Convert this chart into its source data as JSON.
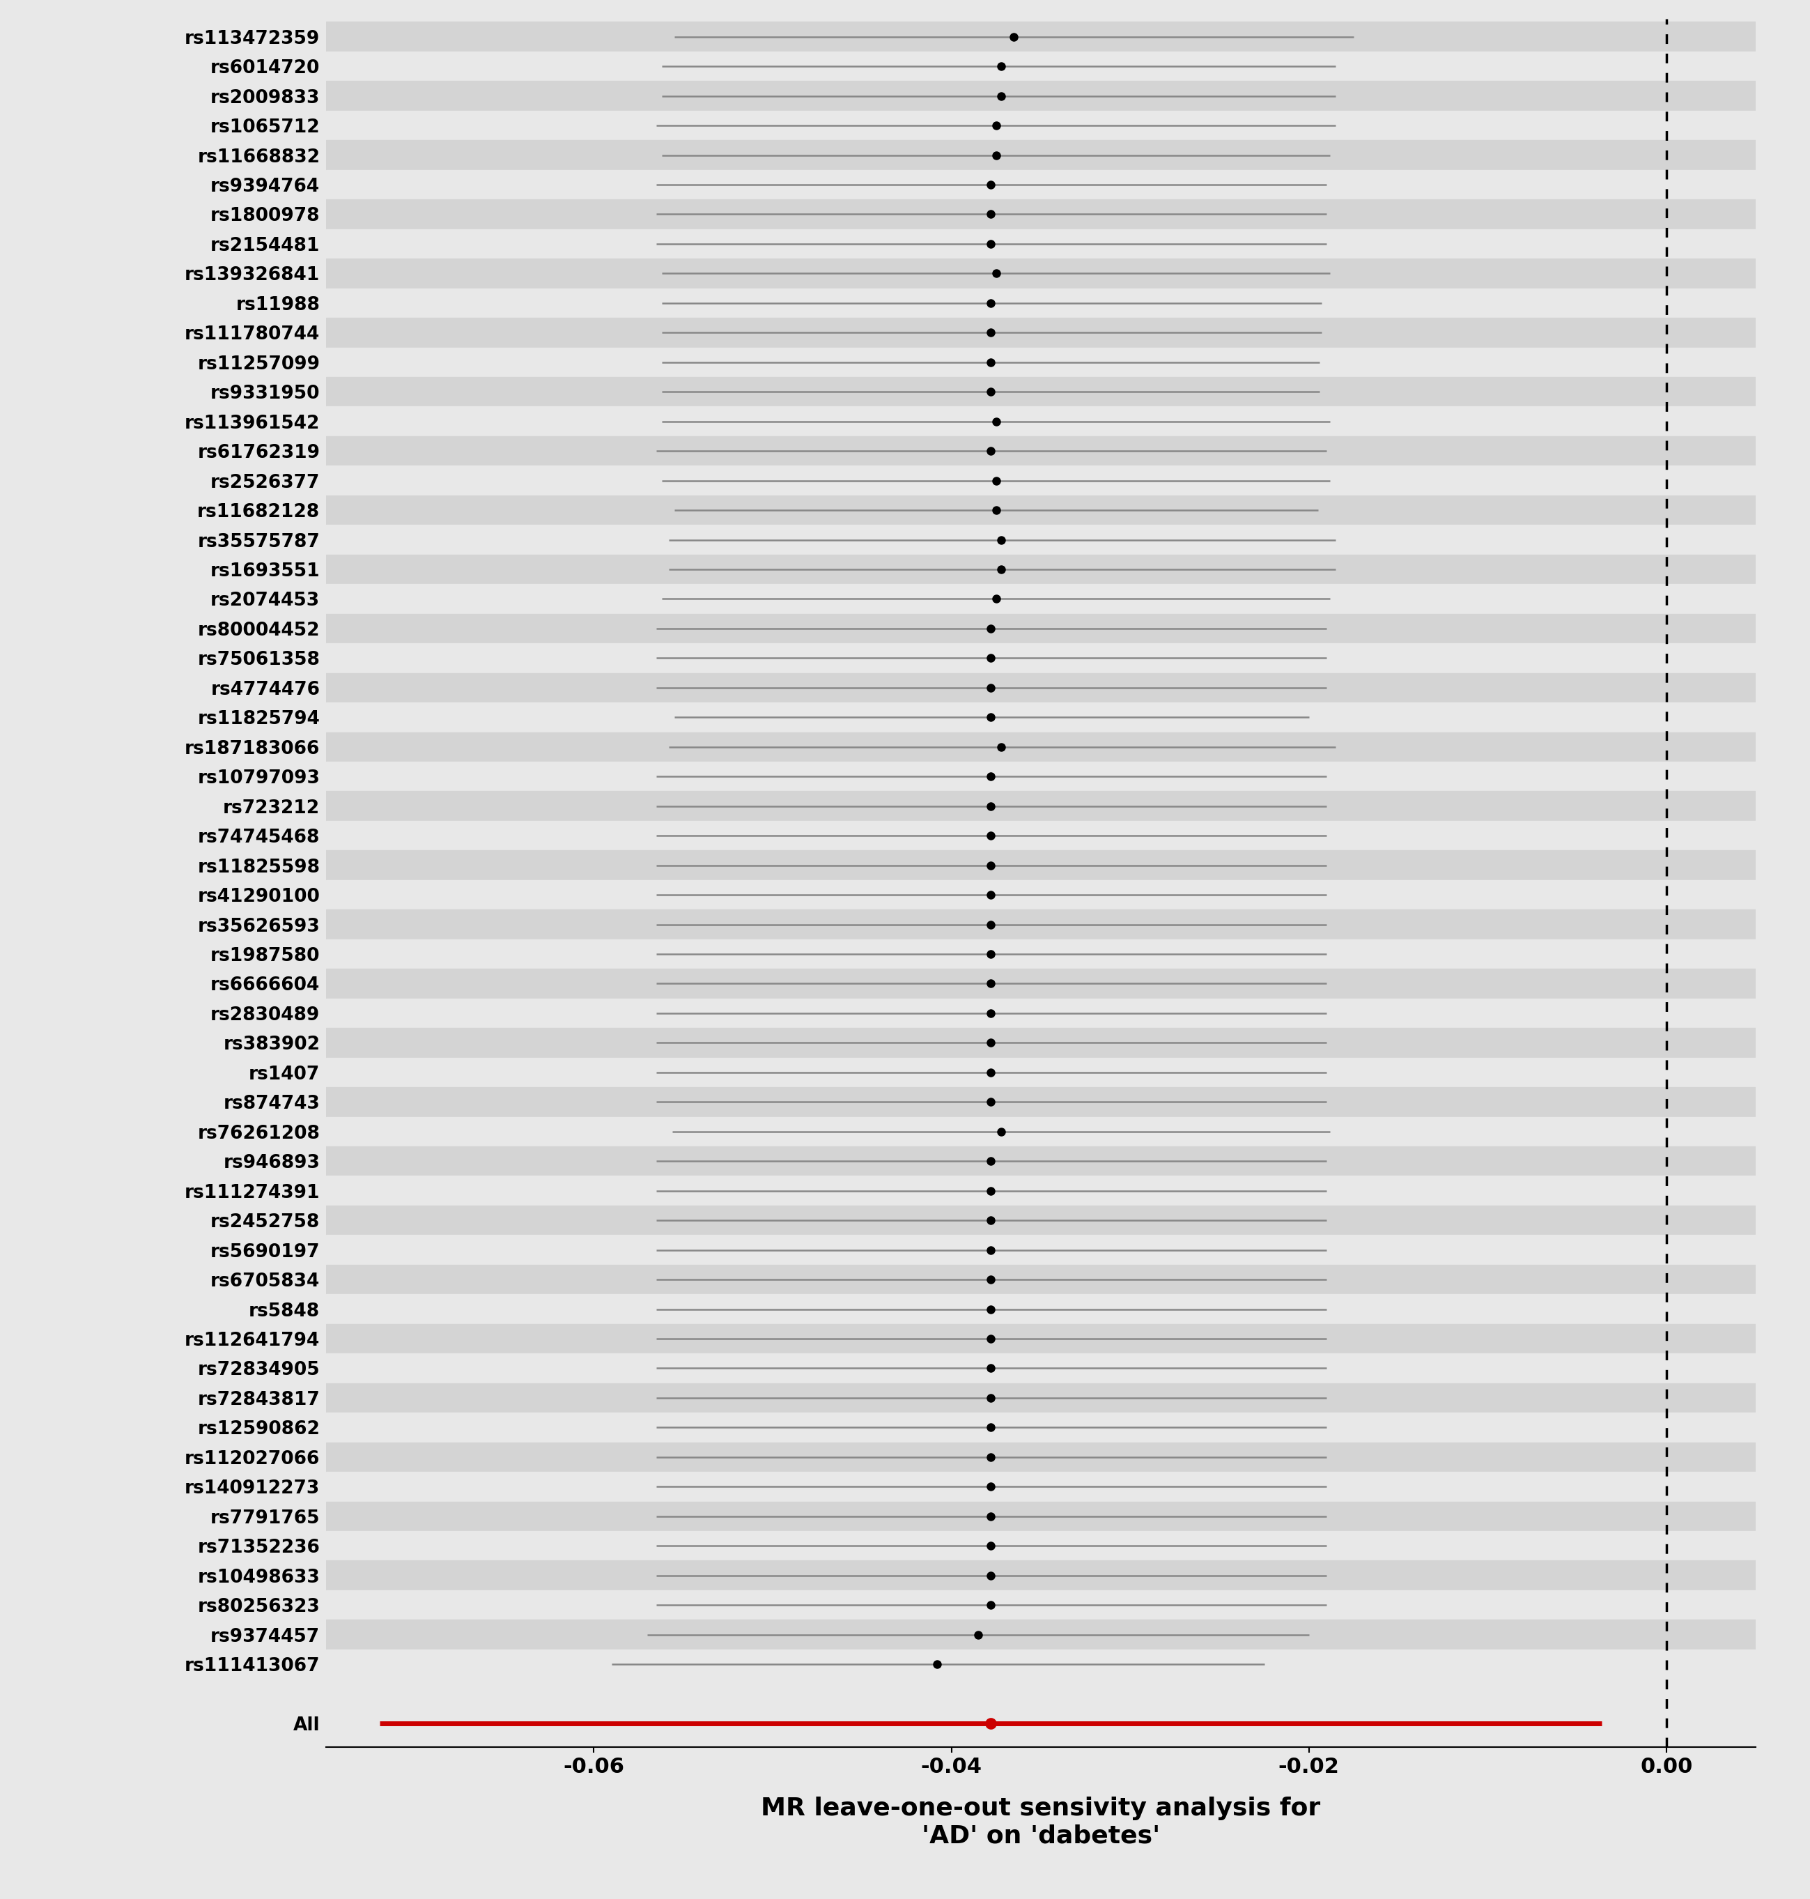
{
  "snps": [
    "rs113472359",
    "rs6014720",
    "rs2009833",
    "rs1065712",
    "rs11668832",
    "rs9394764",
    "rs1800978",
    "rs2154481",
    "rs139326841",
    "rs11988",
    "rs111780744",
    "rs11257099",
    "rs9331950",
    "rs113961542",
    "rs61762319",
    "rs2526377",
    "rs11682128",
    "rs35575787",
    "rs1693551",
    "rs2074453",
    "rs80004452",
    "rs75061358",
    "rs4774476",
    "rs11825794",
    "rs187183066",
    "rs10797093",
    "rs723212",
    "rs74745468",
    "rs11825598",
    "rs41290100",
    "rs35626593",
    "rs1987580",
    "rs6666604",
    "rs2830489",
    "rs383902",
    "rs1407",
    "rs874743",
    "rs76261208",
    "rs946893",
    "rs111274391",
    "rs2452758",
    "rs5690197",
    "rs6705834",
    "rs5848",
    "rs112641794",
    "rs72834905",
    "rs72843817",
    "rs12590862",
    "rs112027066",
    "rs140912273",
    "rs7791765",
    "rs71352236",
    "rs10498633",
    "rs80256323",
    "rs9374457",
    "rs111413067"
  ],
  "estimates": [
    -0.0365,
    -0.0372,
    -0.0372,
    -0.0375,
    -0.0375,
    -0.0378,
    -0.0378,
    -0.0378,
    -0.0375,
    -0.0378,
    -0.0378,
    -0.0378,
    -0.0378,
    -0.0375,
    -0.0378,
    -0.0375,
    -0.0375,
    -0.0372,
    -0.0372,
    -0.0375,
    -0.0378,
    -0.0378,
    -0.0378,
    -0.0378,
    -0.0372,
    -0.0378,
    -0.0378,
    -0.0378,
    -0.0378,
    -0.0378,
    -0.0378,
    -0.0378,
    -0.0378,
    -0.0378,
    -0.0378,
    -0.0378,
    -0.0378,
    -0.0372,
    -0.0378,
    -0.0378,
    -0.0378,
    -0.0378,
    -0.0378,
    -0.0378,
    -0.0378,
    -0.0378,
    -0.0378,
    -0.0378,
    -0.0378,
    -0.0378,
    -0.0378,
    -0.0378,
    -0.0378,
    -0.0378,
    -0.0385,
    -0.0408
  ],
  "ci_lower": [
    -0.0555,
    -0.0562,
    -0.0562,
    -0.0565,
    -0.0562,
    -0.0565,
    -0.0565,
    -0.0565,
    -0.0562,
    -0.0562,
    -0.0562,
    -0.0562,
    -0.0562,
    -0.0562,
    -0.0565,
    -0.0562,
    -0.0555,
    -0.0558,
    -0.0558,
    -0.0562,
    -0.0565,
    -0.0565,
    -0.0565,
    -0.0555,
    -0.0558,
    -0.0565,
    -0.0565,
    -0.0565,
    -0.0565,
    -0.0565,
    -0.0565,
    -0.0565,
    -0.0565,
    -0.0565,
    -0.0565,
    -0.0565,
    -0.0565,
    -0.0556,
    -0.0565,
    -0.0565,
    -0.0565,
    -0.0565,
    -0.0565,
    -0.0565,
    -0.0565,
    -0.0565,
    -0.0565,
    -0.0565,
    -0.0565,
    -0.0565,
    -0.0565,
    -0.0565,
    -0.0565,
    -0.0565,
    -0.057,
    -0.059
  ],
  "ci_upper": [
    -0.0175,
    -0.0185,
    -0.0185,
    -0.0185,
    -0.0188,
    -0.019,
    -0.019,
    -0.019,
    -0.0188,
    -0.0193,
    -0.0193,
    -0.0194,
    -0.0194,
    -0.0188,
    -0.019,
    -0.0188,
    -0.0195,
    -0.0185,
    -0.0185,
    -0.0188,
    -0.019,
    -0.019,
    -0.019,
    -0.02,
    -0.0185,
    -0.019,
    -0.019,
    -0.019,
    -0.019,
    -0.019,
    -0.019,
    -0.019,
    -0.019,
    -0.019,
    -0.019,
    -0.019,
    -0.019,
    -0.0188,
    -0.019,
    -0.019,
    -0.019,
    -0.019,
    -0.019,
    -0.019,
    -0.019,
    -0.019,
    -0.019,
    -0.019,
    -0.019,
    -0.019,
    -0.019,
    -0.019,
    -0.019,
    -0.019,
    -0.02,
    -0.0225
  ],
  "all_estimate": -0.0378,
  "all_ci_lower": -0.072,
  "all_ci_upper": -0.0036,
  "xlim": [
    -0.075,
    0.005
  ],
  "xticks": [
    -0.06,
    -0.04,
    -0.02,
    0.0
  ],
  "xticklabels": [
    "-0.06",
    "-0.04",
    "-0.02",
    "0.00"
  ],
  "xlabel": "MR leave-one-out sensivity analysis for\n'AD' on 'dabetes'",
  "vline_x": 0.0,
  "background_color": "#e8e8e8",
  "row_color_a": "#d4d4d4",
  "row_color_b": "#e8e8e8",
  "dot_color": "#000000",
  "ci_color": "#888888",
  "all_dot_color": "#cc0000",
  "all_ci_color": "#cc0000",
  "vline_color": "#000000",
  "xlabel_fontsize": 26,
  "tick_fontsize": 22,
  "snp_fontsize": 19
}
